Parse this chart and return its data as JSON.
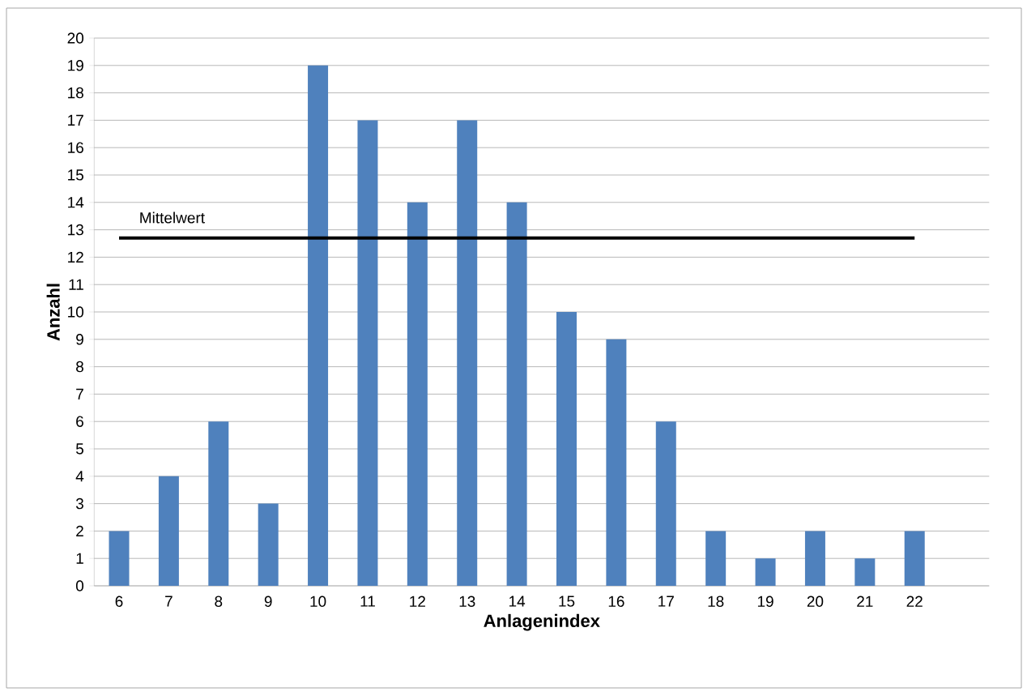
{
  "chart_data": {
    "type": "bar",
    "xlabel": "Anlagenindex",
    "ylabel": "Anzahl",
    "categories": [
      "6",
      "7",
      "8",
      "9",
      "10",
      "11",
      "12",
      "13",
      "14",
      "15",
      "16",
      "17",
      "18",
      "19",
      "20",
      "21",
      "22"
    ],
    "values": [
      2,
      4,
      6,
      3,
      19,
      17,
      14,
      17,
      14,
      10,
      9,
      6,
      2,
      1,
      2,
      1,
      2
    ],
    "color": "#4f81bd",
    "ylim": [
      0,
      20
    ],
    "yticks": [
      0,
      1,
      2,
      3,
      4,
      5,
      6,
      7,
      8,
      9,
      10,
      11,
      12,
      13,
      14,
      15,
      16,
      17,
      18,
      19,
      20
    ],
    "grid": "y",
    "ref_lines": [
      {
        "axis": "y",
        "value": 12.7,
        "label": "Mittelwert",
        "color": "#000000"
      }
    ]
  }
}
